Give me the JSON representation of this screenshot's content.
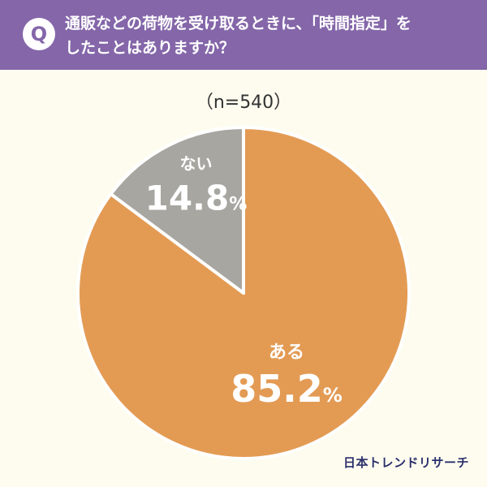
{
  "question": {
    "badge": "Q",
    "line1": "通販などの荷物を受け取るときに、「時間指定」を",
    "line2": "したことはありますか？"
  },
  "chart_data": {
    "type": "pie",
    "sample_size_label": "（n=540）",
    "slices": [
      {
        "label": "ある",
        "value": 85.2,
        "value_label": "85.2",
        "unit": "%",
        "color": "#e39b54"
      },
      {
        "label": "ない",
        "value": 14.8,
        "value_label": "14.8",
        "unit": "%",
        "color": "#a7a6a1"
      }
    ],
    "start": "12 o'clock",
    "direction": "clockwise"
  },
  "footer": {
    "logo": "日本トレンドリサーチ"
  },
  "colors": {
    "header_bg": "#8466a9",
    "page_bg": "#fdfcef",
    "logo_text": "#2b2f6b"
  }
}
